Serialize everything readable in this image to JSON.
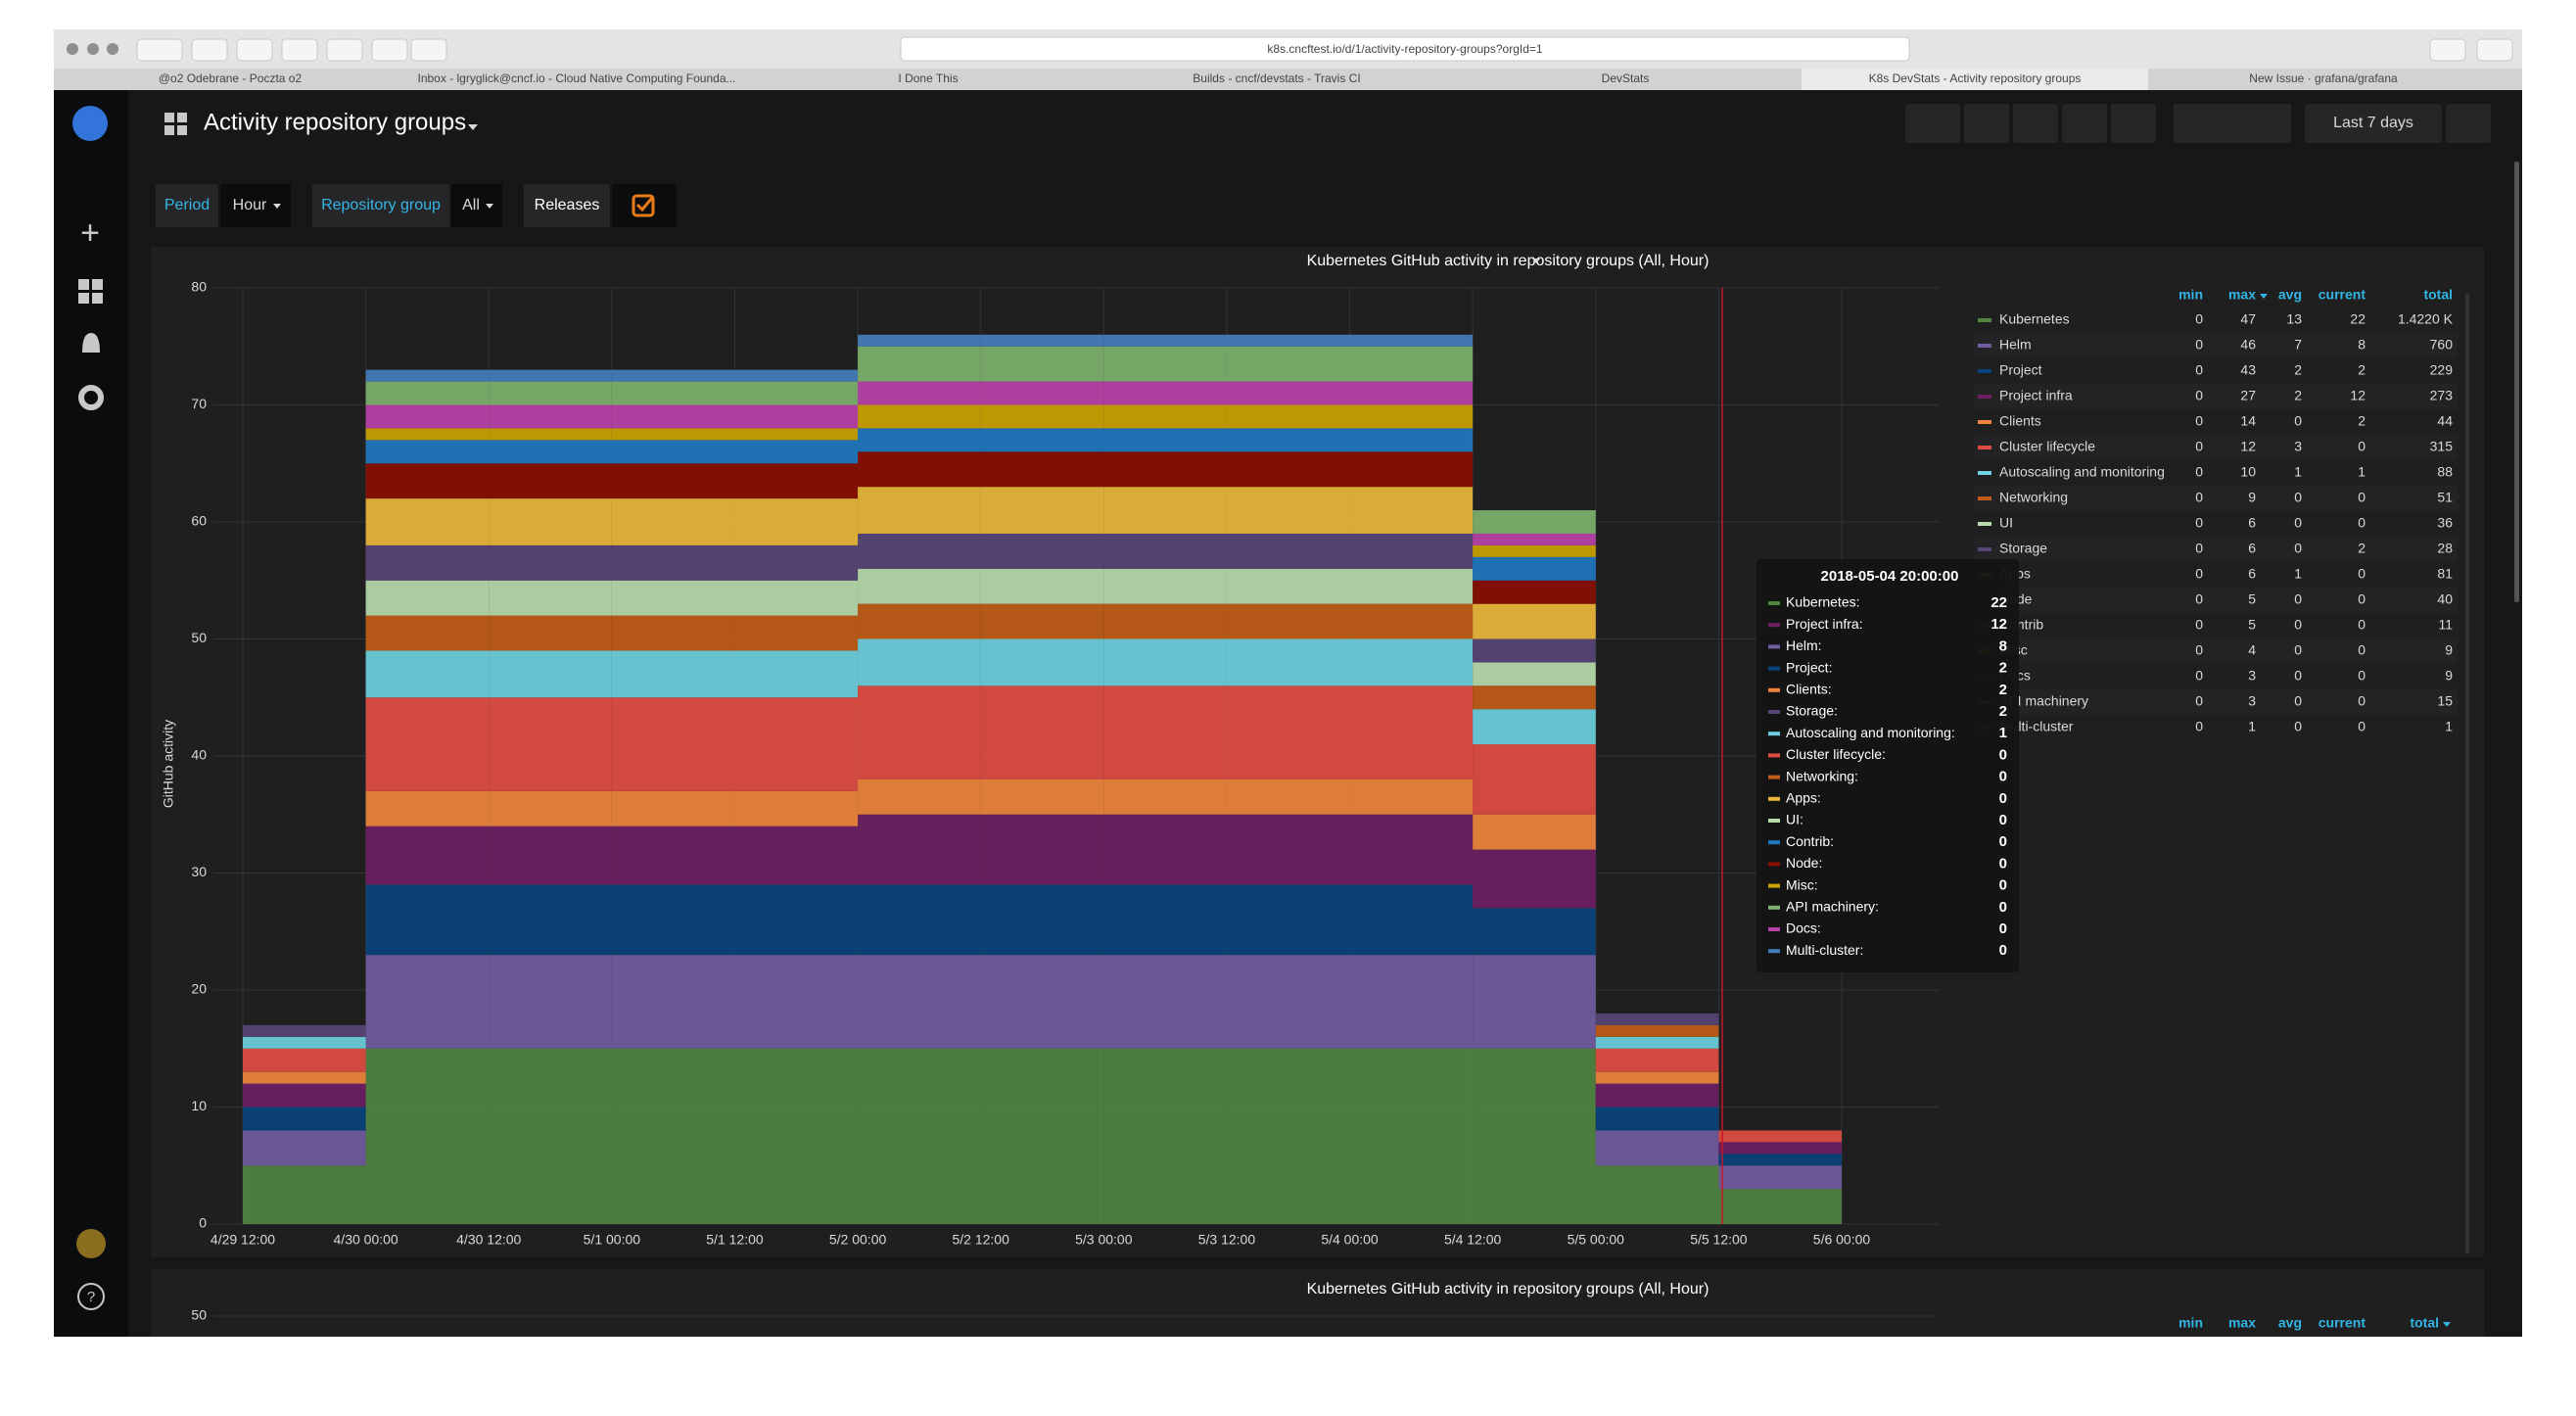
{
  "browser": {
    "tabs": [
      "@o2 Odebrane - Poczta o2",
      "Inbox - lgryglick@cncf.io - Cloud Native Computing Founda...",
      "I Done This",
      "Builds - cncf/devstats - Travis CI",
      "DevStats",
      "K8s DevStats - Activity repository groups",
      "New Issue · grafana/grafana"
    ],
    "url": "k8s.cncftest.io/d/1/activity-repository-groups?orgId=1"
  },
  "header": {
    "title": "Activity repository groups",
    "time_range": "Last 7 days"
  },
  "variables": [
    {
      "label": "Period",
      "value": "Hour"
    },
    {
      "label": "Repository group",
      "value": "All"
    },
    {
      "label": "Releases"
    }
  ],
  "chart_data": {
    "type": "stacked-step-area",
    "title": "Kubernetes GitHub activity in repository groups (All, Hour)",
    "y_label": "GitHub activity",
    "categories": [
      "4/29 12:00",
      "4/30 00:00",
      "4/30 12:00",
      "5/1 00:00",
      "5/1 12:00",
      "5/2 00:00",
      "5/2 12:00",
      "5/3 00:00",
      "5/3 12:00",
      "5/4 00:00",
      "5/4 12:00",
      "5/5 00:00",
      "5/5 12:00",
      "5/6 00:00"
    ],
    "ylim": [
      0,
      80
    ],
    "yticks": [
      0,
      10,
      20,
      30,
      40,
      50,
      60,
      70,
      80
    ],
    "grid": true,
    "series": [
      {
        "name": "Kubernetes",
        "color": "#508642",
        "values": [
          5,
          15,
          15,
          15,
          15,
          15,
          15,
          15,
          15,
          15,
          15,
          5,
          3,
          0
        ]
      },
      {
        "name": "Helm",
        "color": "#705da0",
        "values": [
          3,
          8,
          8,
          8,
          8,
          8,
          8,
          8,
          8,
          8,
          8,
          3,
          2,
          0
        ]
      },
      {
        "name": "Project",
        "color": "#0a437c",
        "values": [
          2,
          6,
          6,
          6,
          6,
          6,
          6,
          6,
          6,
          6,
          4,
          2,
          1,
          0
        ]
      },
      {
        "name": "Project infra",
        "color": "#6d1f62",
        "values": [
          2,
          5,
          5,
          5,
          5,
          6,
          6,
          6,
          6,
          6,
          5,
          2,
          1,
          0
        ]
      },
      {
        "name": "Clients",
        "color": "#ef843c",
        "values": [
          1,
          3,
          3,
          3,
          3,
          3,
          3,
          3,
          3,
          3,
          3,
          1,
          0,
          0
        ]
      },
      {
        "name": "Cluster lifecycle",
        "color": "#e24d42",
        "values": [
          2,
          8,
          8,
          8,
          8,
          8,
          8,
          8,
          8,
          8,
          6,
          2,
          1,
          0
        ]
      },
      {
        "name": "Autoscaling and monitoring",
        "color": "#6ed0e0",
        "values": [
          1,
          4,
          4,
          4,
          4,
          4,
          4,
          4,
          4,
          4,
          3,
          1,
          0,
          0
        ]
      },
      {
        "name": "Networking",
        "color": "#c15c17",
        "values": [
          0,
          3,
          3,
          3,
          3,
          3,
          3,
          3,
          3,
          3,
          2,
          1,
          0,
          0
        ]
      },
      {
        "name": "UI",
        "color": "#b7dbab",
        "values": [
          0,
          3,
          3,
          3,
          3,
          3,
          3,
          3,
          3,
          3,
          2,
          0,
          0,
          0
        ]
      },
      {
        "name": "Storage",
        "color": "#584477",
        "values": [
          1,
          3,
          3,
          3,
          3,
          3,
          3,
          3,
          3,
          3,
          2,
          1,
          0,
          0
        ]
      },
      {
        "name": "Apps",
        "color": "#eab839",
        "values": [
          0,
          4,
          4,
          4,
          4,
          4,
          4,
          4,
          4,
          4,
          3,
          0,
          0,
          0
        ]
      },
      {
        "name": "Node",
        "color": "#890f02",
        "values": [
          0,
          3,
          3,
          3,
          3,
          3,
          3,
          3,
          3,
          3,
          2,
          0,
          0,
          0
        ]
      },
      {
        "name": "Contrib",
        "color": "#1f78c1",
        "values": [
          0,
          2,
          2,
          2,
          2,
          2,
          2,
          2,
          2,
          2,
          2,
          0,
          0,
          0
        ]
      },
      {
        "name": "Misc",
        "color": "#cca300",
        "values": [
          0,
          1,
          1,
          1,
          1,
          2,
          2,
          2,
          2,
          2,
          1,
          0,
          0,
          0
        ]
      },
      {
        "name": "Docs",
        "color": "#ba43a9",
        "values": [
          0,
          2,
          2,
          2,
          2,
          2,
          2,
          2,
          2,
          2,
          1,
          0,
          0,
          0
        ]
      },
      {
        "name": "API machinery",
        "color": "#7eb26d",
        "values": [
          0,
          2,
          2,
          2,
          2,
          3,
          3,
          3,
          3,
          3,
          2,
          0,
          0,
          0
        ]
      },
      {
        "name": "Multi-cluster",
        "color": "#447ebc",
        "values": [
          0,
          1,
          1,
          1,
          1,
          1,
          1,
          1,
          1,
          1,
          0,
          0,
          0,
          0
        ]
      }
    ]
  },
  "legend_table": {
    "columns": [
      "min",
      "max",
      "avg",
      "current",
      "total"
    ],
    "rows": [
      [
        "0",
        "47",
        "13",
        "22",
        "1.4220 K"
      ],
      [
        "0",
        "46",
        "7",
        "8",
        "760"
      ],
      [
        "0",
        "43",
        "2",
        "2",
        "229"
      ],
      [
        "0",
        "27",
        "2",
        "12",
        "273"
      ],
      [
        "0",
        "14",
        "0",
        "2",
        "44"
      ],
      [
        "0",
        "12",
        "3",
        "0",
        "315"
      ],
      [
        "0",
        "10",
        "1",
        "1",
        "88"
      ],
      [
        "0",
        "9",
        "0",
        "0",
        "51"
      ],
      [
        "0",
        "6",
        "0",
        "0",
        "36"
      ],
      [
        "0",
        "6",
        "0",
        "2",
        "28"
      ],
      [
        "0",
        "6",
        "1",
        "0",
        "81"
      ],
      [
        "0",
        "5",
        "0",
        "0",
        "40"
      ],
      [
        "0",
        "5",
        "0",
        "0",
        "11"
      ],
      [
        "0",
        "4",
        "0",
        "0",
        "9"
      ],
      [
        "0",
        "3",
        "0",
        "0",
        "9"
      ],
      [
        "0",
        "3",
        "0",
        "0",
        "15"
      ],
      [
        "0",
        "1",
        "0",
        "0",
        "1"
      ]
    ]
  },
  "tooltip": {
    "time": "2018-05-04 20:00:00",
    "items": [
      {
        "name": "Kubernetes:",
        "value": "22",
        "color": "#508642"
      },
      {
        "name": "Project infra:",
        "value": "12",
        "color": "#6d1f62"
      },
      {
        "name": "Helm:",
        "value": "8",
        "color": "#705da0"
      },
      {
        "name": "Project:",
        "value": "2",
        "color": "#0a437c"
      },
      {
        "name": "Clients:",
        "value": "2",
        "color": "#ef843c"
      },
      {
        "name": "Storage:",
        "value": "2",
        "color": "#584477"
      },
      {
        "name": "Autoscaling and monitoring:",
        "value": "1",
        "color": "#6ed0e0"
      },
      {
        "name": "Cluster lifecycle:",
        "value": "0",
        "color": "#e24d42"
      },
      {
        "name": "Networking:",
        "value": "0",
        "color": "#c15c17"
      },
      {
        "name": "Apps:",
        "value": "0",
        "color": "#eab839"
      },
      {
        "name": "UI:",
        "value": "0",
        "color": "#b7dbab"
      },
      {
        "name": "Contrib:",
        "value": "0",
        "color": "#1f78c1"
      },
      {
        "name": "Node:",
        "value": "0",
        "color": "#890f02"
      },
      {
        "name": "Misc:",
        "value": "0",
        "color": "#cca300"
      },
      {
        "name": "API machinery:",
        "value": "0",
        "color": "#7eb26d"
      },
      {
        "name": "Docs:",
        "value": "0",
        "color": "#ba43a9"
      },
      {
        "name": "Multi-cluster:",
        "value": "0",
        "color": "#447ebc"
      }
    ]
  },
  "second_panel": {
    "title": "Kubernetes GitHub activity in repository groups (All, Hour)",
    "yticks": [
      50
    ]
  }
}
